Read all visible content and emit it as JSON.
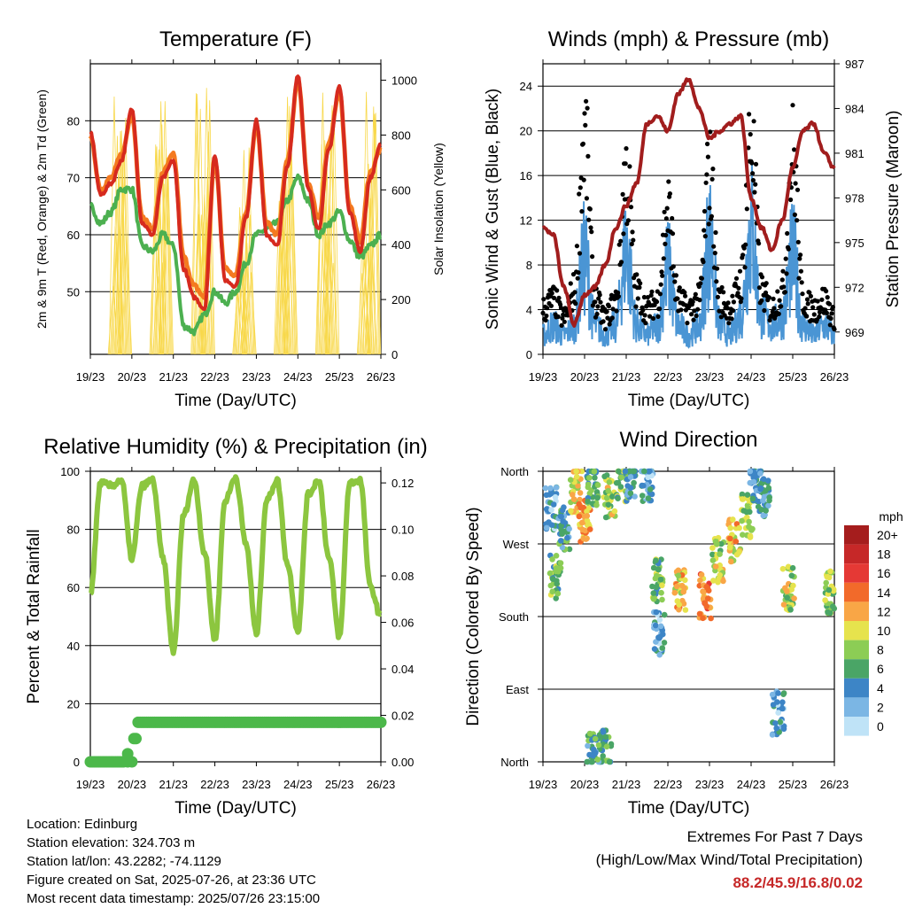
{
  "x_ticks": [
    "19/23",
    "20/23",
    "21/23",
    "22/23",
    "23/23",
    "24/23",
    "25/23",
    "26/23"
  ],
  "x_label": "Time (Day/UTC)",
  "colors": {
    "temp_2m": "#d62a1e",
    "temp_9m": "#f47a20",
    "dewpoint": "#4cb050",
    "insolation": "#f8d84a",
    "wind": "#4a95d4",
    "gust": "#000000",
    "pressure": "#a11d1d",
    "rh": "#8cc63f",
    "precip": "#4cb84a"
  },
  "chart_data": [
    {
      "id": "temperature",
      "type": "line",
      "title": "Temperature (F)",
      "xlabel": "Time (Day/UTC)",
      "ylabel": "2m & 9m T (Red, Orange) & 2m Td (Green)",
      "ylabel_right": "Solar Insolation (Yellow)",
      "ylim": [
        39,
        90
      ],
      "y_ticks": [
        50,
        60,
        70,
        80
      ],
      "ylim_right": [
        0,
        1060
      ],
      "y_ticks_right": [
        0,
        200,
        400,
        600,
        800,
        1000
      ],
      "x": [
        0,
        0.25,
        0.5,
        0.75,
        1,
        1.25,
        1.5,
        1.75,
        2,
        2.25,
        2.5,
        2.75,
        3,
        3.25,
        3.5,
        3.75,
        4,
        4.25,
        4.5,
        4.75,
        5,
        5.25,
        5.5,
        5.75,
        6,
        6.25,
        6.5,
        6.75,
        7
      ],
      "series": [
        {
          "name": "2m T",
          "values": [
            78,
            67,
            69,
            73,
            82,
            62,
            60,
            70,
            73,
            54,
            49,
            47,
            74,
            52,
            51,
            63,
            80,
            60,
            58,
            72,
            88,
            68,
            61,
            75,
            86,
            64,
            57,
            70,
            76
          ]
        },
        {
          "name": "9m T",
          "values": [
            77,
            68,
            70,
            74,
            81,
            63,
            61,
            71,
            74,
            56,
            51,
            49,
            73,
            54,
            53,
            64,
            79,
            62,
            60,
            73,
            87,
            69,
            63,
            76,
            85,
            65,
            59,
            71,
            75
          ]
        },
        {
          "name": "2m Td",
          "values": [
            65,
            62,
            64,
            68,
            68,
            58,
            57,
            60,
            58,
            44,
            43,
            46,
            50,
            48,
            50,
            55,
            60,
            61,
            62,
            66,
            70,
            66,
            60,
            62,
            64,
            59,
            56,
            58,
            60
          ]
        },
        {
          "name": "Solar Insolation",
          "axis": "right",
          "days": [
            0,
            1,
            2,
            3,
            4,
            5,
            6
          ],
          "peaks": [
            1000,
            980,
            1020,
            800,
            1010,
            1000,
            960
          ]
        }
      ]
    },
    {
      "id": "winds",
      "type": "line",
      "title": "Winds (mph) & Pressure (mb)",
      "xlabel": "Time (Day/UTC)",
      "ylabel": "Sonic Wind & Gust (Blue, Black)",
      "ylabel_right": "Station Pressure (Maroon)",
      "ylim": [
        0,
        26
      ],
      "y_ticks": [
        0,
        4,
        8,
        12,
        16,
        20,
        24
      ],
      "ylim_right": [
        967.5,
        987
      ],
      "y_ticks_right": [
        969,
        972,
        975,
        978,
        981,
        984,
        987
      ],
      "x": [
        0,
        0.25,
        0.5,
        0.75,
        1,
        1.25,
        1.5,
        1.75,
        2,
        2.25,
        2.5,
        2.75,
        3,
        3.25,
        3.5,
        3.75,
        4,
        4.25,
        4.5,
        4.75,
        5,
        5.25,
        5.5,
        5.75,
        6,
        6.25,
        6.5,
        6.75,
        7
      ],
      "series": [
        {
          "name": "Wind",
          "values": [
            2,
            3,
            2,
            3,
            10,
            3,
            2,
            3,
            11,
            3,
            2,
            3,
            9,
            3,
            2,
            3,
            12,
            3,
            2,
            4,
            13,
            4,
            3,
            4,
            10,
            3,
            2,
            3,
            2
          ]
        },
        {
          "name": "Gust",
          "values": [
            5,
            6,
            4,
            7,
            24,
            6,
            4,
            6,
            20,
            7,
            5,
            6,
            16,
            6,
            5,
            6,
            20,
            6,
            5,
            8,
            24,
            7,
            5,
            7,
            22,
            6,
            5,
            6,
            4
          ]
        },
        {
          "name": "Station Pressure",
          "axis": "right",
          "values": [
            976,
            975.5,
            972,
            969.5,
            971.5,
            972,
            973.5,
            976,
            977.5,
            979,
            983,
            983.5,
            982.5,
            985,
            986,
            984,
            982,
            982.5,
            983,
            983.5,
            978,
            976,
            974.5,
            976.5,
            980,
            982.5,
            983,
            981,
            980
          ]
        }
      ]
    },
    {
      "id": "humidity",
      "type": "line",
      "title": "Relative Humidity (%) & Precipitation (in)",
      "xlabel": "Time (Day/UTC)",
      "ylabel": "Percent & Total Rainfall",
      "ylim": [
        0,
        100
      ],
      "y_ticks": [
        0,
        20,
        40,
        60,
        80,
        100
      ],
      "ylim_right": [
        0,
        0.125
      ],
      "y_ticks_right": [
        "0.00",
        "0.02",
        "0.04",
        "0.06",
        "0.08",
        "0.10",
        "0.12"
      ],
      "x": [
        0,
        0.25,
        0.5,
        0.75,
        1,
        1.25,
        1.5,
        1.75,
        2,
        2.25,
        2.5,
        2.75,
        3,
        3.25,
        3.5,
        3.75,
        4,
        4.25,
        4.5,
        4.75,
        5,
        5.25,
        5.5,
        5.75,
        6,
        6.25,
        6.5,
        6.75,
        7
      ],
      "series": [
        {
          "name": "Relative Humidity",
          "values": [
            58,
            96,
            95,
            97,
            70,
            95,
            97,
            70,
            38,
            85,
            97,
            72,
            42,
            90,
            98,
            75,
            44,
            90,
            97,
            68,
            45,
            92,
            97,
            70,
            43,
            96,
            97,
            60,
            50
          ]
        },
        {
          "name": "Total Precipitation",
          "axis": "right",
          "x": [
            0,
            1,
            1.05,
            1.15,
            7
          ],
          "values": [
            0,
            0,
            0.01,
            0.017,
            0.017
          ]
        }
      ]
    },
    {
      "id": "direction",
      "type": "scatter",
      "title": "Wind Direction",
      "xlabel": "Time (Day/UTC)",
      "ylabel": "Direction (Colored By Speed)",
      "y_categories": [
        "North",
        "East",
        "South",
        "West",
        "North"
      ],
      "ylim": [
        0,
        360
      ],
      "legend": {
        "title": "mph",
        "position": "right",
        "labels": [
          "20+",
          "18",
          "16",
          "14",
          "12",
          "10",
          "8",
          "6",
          "4",
          "2",
          "0"
        ],
        "colors": [
          "#a51d1d",
          "#c62828",
          "#e53935",
          "#f26a2a",
          "#f9a646",
          "#e6e34d",
          "#8ccd55",
          "#4aa566",
          "#3d85c6",
          "#7bb6e4",
          "#bfe3f7"
        ]
      },
      "clusters": [
        {
          "x": 0.2,
          "dir": 315,
          "speed": 3
        },
        {
          "x": 0.5,
          "dir": 290,
          "speed": 5
        },
        {
          "x": 0.8,
          "dir": 335,
          "speed": 10
        },
        {
          "x": 1.0,
          "dir": 300,
          "speed": 12
        },
        {
          "x": 1.2,
          "dir": 345,
          "speed": 6
        },
        {
          "x": 1.6,
          "dir": 330,
          "speed": 9
        },
        {
          "x": 1.9,
          "dir": 350,
          "speed": 7
        },
        {
          "x": 2.1,
          "dir": 355,
          "speed": 4
        },
        {
          "x": 2.5,
          "dir": 350,
          "speed": 3
        },
        {
          "x": 2.75,
          "dir": 225,
          "speed": 7
        },
        {
          "x": 2.8,
          "dir": 160,
          "speed": 3
        },
        {
          "x": 3.3,
          "dir": 210,
          "speed": 11
        },
        {
          "x": 3.9,
          "dir": 205,
          "speed": 13
        },
        {
          "x": 4.2,
          "dir": 250,
          "speed": 9
        },
        {
          "x": 4.6,
          "dir": 275,
          "speed": 11
        },
        {
          "x": 4.9,
          "dir": 305,
          "speed": 8
        },
        {
          "x": 5.1,
          "dir": 350,
          "speed": 4
        },
        {
          "x": 5.3,
          "dir": 330,
          "speed": 4
        },
        {
          "x": 5.65,
          "dir": 60,
          "speed": 3
        },
        {
          "x": 5.9,
          "dir": 215,
          "speed": 9
        },
        {
          "x": 0.3,
          "dir": 230,
          "speed": 7
        },
        {
          "x": 1.5,
          "dir": 20,
          "speed": 6
        },
        {
          "x": 1.2,
          "dir": 8,
          "speed": 5
        },
        {
          "x": 6.9,
          "dir": 210,
          "speed": 8
        }
      ]
    }
  ],
  "info": {
    "location": "Location: Edinburg",
    "elevation": "Station elevation: 324.703 m",
    "latlon": "Station lat/lon: 43.2282; -74.1129",
    "created": "Figure created on Sat, 2025-07-26, at 23:36 UTC",
    "recent": "Most recent data timestamp: 2025/07/26 23:15:00"
  },
  "extremes": {
    "title": "Extremes For Past 7 Days",
    "subtitle": "(High/Low/Max Wind/Total Precipitation)",
    "values": "88.2/45.9/16.8/0.02"
  }
}
